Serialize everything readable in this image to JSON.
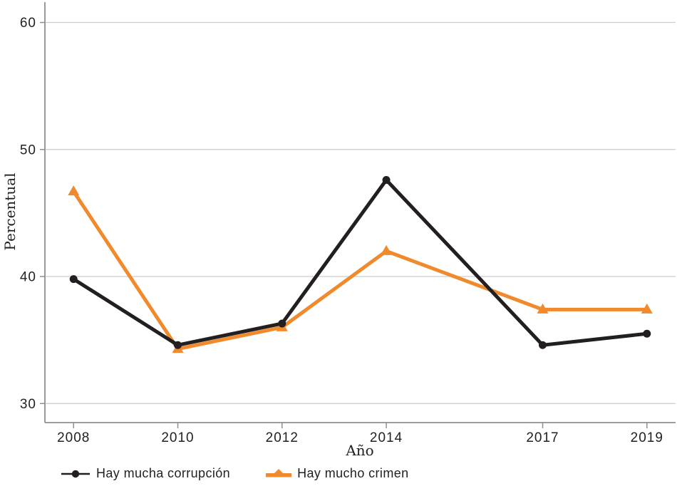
{
  "chart_data": {
    "type": "line",
    "title": "",
    "xlabel": "Año",
    "ylabel": "Percentual",
    "x": [
      2008,
      2010,
      2012,
      2014,
      2017,
      2019
    ],
    "x_tick_labels": [
      "2008",
      "2010",
      "2012",
      "2014",
      "2017",
      "2019"
    ],
    "yticks": [
      30,
      40,
      50,
      60
    ],
    "ylim": [
      28.5,
      61.6
    ],
    "xlim": [
      2007.45,
      2019.55
    ],
    "grid": "horizontal",
    "legend_position": "bottom-left",
    "series": [
      {
        "name": "Hay mucha corrupción",
        "marker": "circle",
        "color": "#231f20",
        "values": [
          39.8,
          34.6,
          36.3,
          47.6,
          34.6,
          35.5
        ]
      },
      {
        "name": "Hay mucho crimen",
        "marker": "triangle",
        "color": "#F08A2D",
        "values": [
          46.7,
          34.3,
          36.0,
          42.0,
          37.4,
          37.4
        ]
      }
    ]
  },
  "colors": {
    "background": "#ffffff",
    "gridline": "#cdcdcd",
    "axis": "#8f8f8f",
    "tick_text": "#231f20"
  }
}
